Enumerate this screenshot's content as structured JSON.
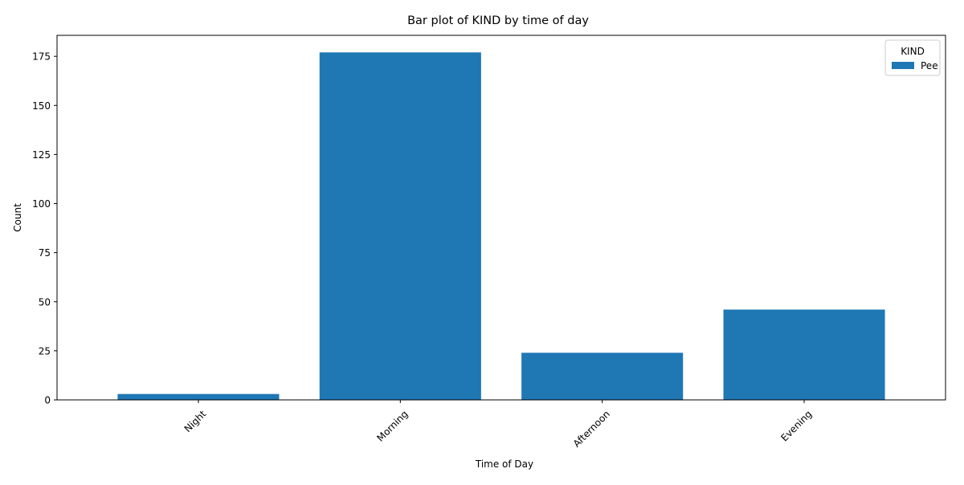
{
  "chart_data": {
    "type": "bar",
    "title": "Bar plot of KIND by time of day",
    "xlabel": "Time of Day",
    "ylabel": "Count",
    "categories": [
      "Night",
      "Morning",
      "Afternoon",
      "Evening"
    ],
    "series": [
      {
        "name": "Pee",
        "values": [
          3,
          177,
          24,
          46
        ],
        "color": "#1f77b4"
      }
    ],
    "ylim": [
      0,
      185.7
    ],
    "yticks": [
      0,
      25,
      50,
      75,
      100,
      125,
      150,
      175
    ],
    "xtick_rotation_deg": 45,
    "grid": false,
    "legend": {
      "title": "KIND",
      "placement": "top-right"
    }
  }
}
